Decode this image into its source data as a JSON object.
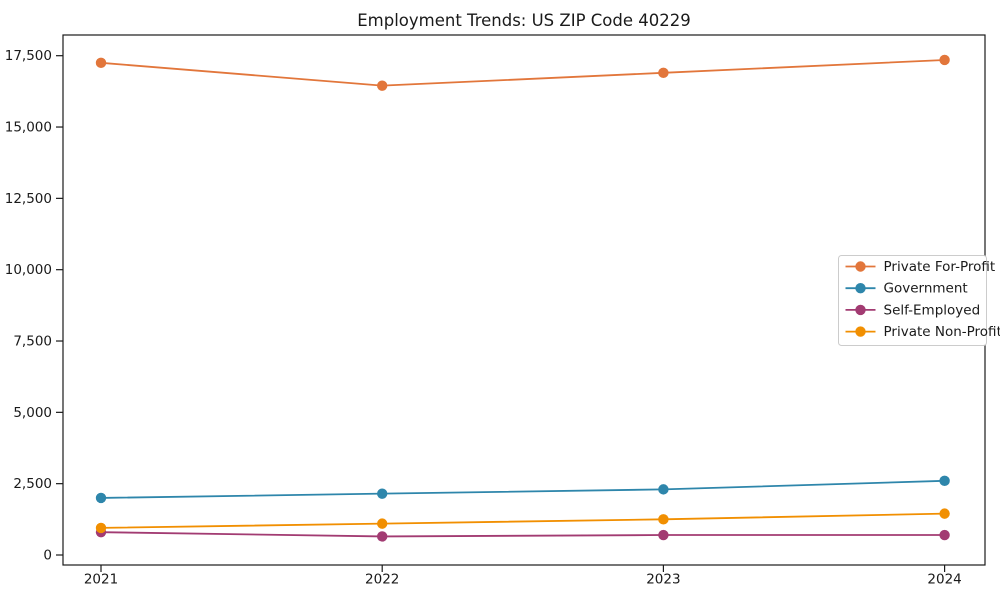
{
  "chart_data": {
    "type": "line",
    "title": "Employment Trends: US ZIP Code 40229",
    "xlabel": "",
    "ylabel": "",
    "x": [
      2021,
      2022,
      2023,
      2024
    ],
    "x_tick_labels": [
      "2021",
      "2022",
      "2023",
      "2024"
    ],
    "yticks": [
      0,
      2500,
      5000,
      7500,
      10000,
      12500,
      15000,
      17500
    ],
    "ytick_labels": [
      "0",
      "2,500",
      "5,000",
      "7,500",
      "10,000",
      "12,500",
      "15,000",
      "17,500"
    ],
    "ylim": [
      0,
      17500
    ],
    "grid": false,
    "legend_position": "center-right",
    "marker": "circle",
    "series": [
      {
        "name": "Private For-Profit",
        "color": "#E2763B",
        "values": [
          17250,
          16450,
          16900,
          17350
        ]
      },
      {
        "name": "Government",
        "color": "#2E86AB",
        "values": [
          2000,
          2150,
          2300,
          2600
        ]
      },
      {
        "name": "Self-Employed",
        "color": "#A23B72",
        "values": [
          800,
          650,
          700,
          700
        ]
      },
      {
        "name": "Private Non-Profit",
        "color": "#F18F01",
        "values": [
          950,
          1100,
          1250,
          1450
        ]
      }
    ],
    "colors": {
      "spine": "#1a1a1a",
      "tick_label": "#1a1a1a",
      "legend_border": "#cccccc",
      "background": "#ffffff"
    }
  }
}
